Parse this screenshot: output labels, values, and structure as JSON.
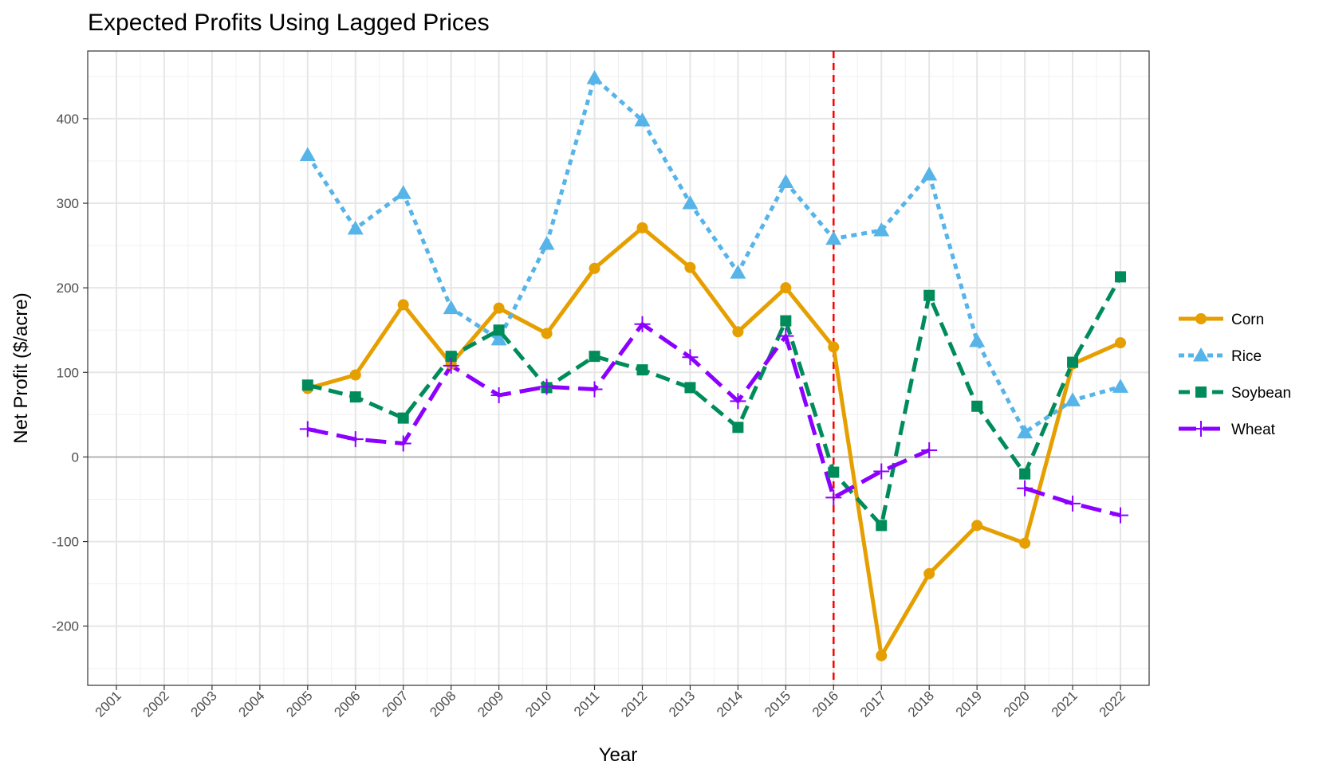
{
  "chart_data": {
    "type": "line",
    "title": "Expected Profits Using Lagged Prices",
    "xlabel": "Year",
    "ylabel": "Net Profit ($/acre)",
    "categories": [
      "2001",
      "2002",
      "2003",
      "2004",
      "2005",
      "2006",
      "2007",
      "2008",
      "2009",
      "2010",
      "2011",
      "2012",
      "2013",
      "2014",
      "2015",
      "2016",
      "2017",
      "2018",
      "2019",
      "2020",
      "2021",
      "2022"
    ],
    "x": [
      2001,
      2002,
      2003,
      2004,
      2005,
      2006,
      2007,
      2008,
      2009,
      2010,
      2011,
      2012,
      2013,
      2014,
      2015,
      2016,
      2017,
      2018,
      2019,
      2020,
      2021,
      2022
    ],
    "ylim": [
      -270,
      480
    ],
    "yticks": [
      -200,
      -100,
      0,
      100,
      200,
      300,
      400
    ],
    "yticks_minor": [
      -250,
      -150,
      -50,
      50,
      150,
      250,
      350,
      450
    ],
    "grid": true,
    "legend_position": "right",
    "reference_hline": 0,
    "reference_vline": 2016,
    "reference_vline_color": "#ff0000",
    "series": [
      {
        "name": "Corn",
        "color": "#e69f00",
        "dash": "solid",
        "marker": "circle",
        "x": [
          2005,
          2006,
          2007,
          2008,
          2009,
          2010,
          2011,
          2012,
          2013,
          2014,
          2015,
          2016,
          2017,
          2018,
          2019,
          2020,
          2021,
          2022
        ],
        "values": [
          81,
          97,
          180,
          110,
          176,
          146,
          223,
          271,
          224,
          148,
          200,
          130,
          -235,
          -138,
          -81,
          -102,
          110,
          135
        ]
      },
      {
        "name": "Rice",
        "color": "#56b4e9",
        "dash": "dotted",
        "marker": "triangle",
        "x": [
          2005,
          2006,
          2007,
          2008,
          2009,
          2010,
          2011,
          2012,
          2013,
          2014,
          2015,
          2016,
          2017,
          2018,
          2019,
          2020,
          2021,
          2022
        ],
        "values": [
          357,
          270,
          312,
          176,
          139,
          252,
          448,
          398,
          300,
          218,
          325,
          258,
          268,
          334,
          137,
          29,
          67,
          83
        ]
      },
      {
        "name": "Soybean",
        "color": "#008c5a",
        "dash": "dashed",
        "marker": "square",
        "x": [
          2005,
          2006,
          2007,
          2008,
          2009,
          2010,
          2011,
          2012,
          2013,
          2014,
          2015,
          2016,
          2017,
          2018,
          2019,
          2020,
          2021,
          2022
        ],
        "values": [
          85,
          71,
          46,
          119,
          150,
          82,
          119,
          103,
          82,
          35,
          161,
          -18,
          -81,
          191,
          60,
          -20,
          112,
          213
        ]
      },
      {
        "name": "Wheat",
        "color": "#8c00ff",
        "dash": "longdash",
        "marker": "plus",
        "x": [
          2005,
          2006,
          2007,
          2008,
          2009,
          2010,
          2011,
          2012,
          2013,
          2014,
          2015,
          2016,
          2017,
          2018,
          2019,
          2020,
          2021,
          2022
        ],
        "values": [
          33,
          21,
          16,
          108,
          73,
          83,
          80,
          157,
          118,
          66,
          143,
          -48,
          -17,
          8,
          null,
          -37,
          -55,
          -69
        ]
      }
    ]
  }
}
